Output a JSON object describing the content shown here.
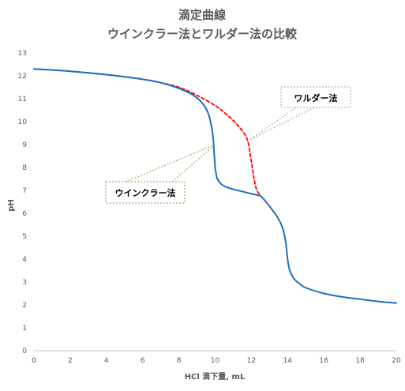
{
  "chart_data": {
    "type": "line",
    "title": "滴定曲線",
    "subtitle": "ウインクラー法とワルダー法の比較",
    "xlabel": "HCl 滴下量, mL",
    "ylabel": "pH",
    "xlim": [
      0,
      20
    ],
    "ylim": [
      0,
      13
    ],
    "x_ticks": [
      0,
      2,
      4,
      6,
      8,
      10,
      12,
      14,
      16,
      18,
      20
    ],
    "y_ticks": [
      0,
      1,
      2,
      3,
      4,
      5,
      6,
      7,
      8,
      9,
      10,
      11,
      12,
      13
    ],
    "grid": false,
    "legend": "none",
    "series": [
      {
        "name": "ウインクラー法",
        "color": "#1f6fbf",
        "style": "solid",
        "x": [
          0,
          2,
          4,
          6,
          7,
          8,
          8.8,
          9.3,
          9.6,
          9.8,
          9.9,
          9.95,
          10.0,
          10.05,
          10.1,
          10.3,
          10.6,
          11,
          11.5,
          12,
          12.5,
          12.8,
          13.2,
          13.5,
          13.75,
          13.9,
          14.0,
          14.05,
          14.1,
          14.2,
          14.4,
          14.7,
          15,
          16,
          17,
          18,
          19,
          20
        ],
        "y": [
          12.3,
          12.2,
          12.05,
          11.85,
          11.7,
          11.45,
          11.15,
          10.8,
          10.4,
          9.8,
          9.2,
          8.6,
          8.0,
          7.75,
          7.55,
          7.3,
          7.15,
          7.05,
          6.95,
          6.85,
          6.75,
          6.5,
          6.1,
          5.75,
          5.3,
          4.7,
          4.0,
          3.75,
          3.55,
          3.35,
          3.1,
          2.9,
          2.75,
          2.5,
          2.35,
          2.25,
          2.15,
          2.08
        ]
      },
      {
        "name": "ワルダー法",
        "color": "#ff0000",
        "style": "dashed",
        "x": [
          0,
          2,
          4,
          6,
          7,
          8,
          9,
          10,
          10.5,
          11,
          11.4,
          11.7,
          11.85,
          11.95,
          12.05,
          12.15,
          12.3,
          12.5
        ],
        "y": [
          12.3,
          12.2,
          12.05,
          11.85,
          11.7,
          11.5,
          11.15,
          10.7,
          10.4,
          10.05,
          9.7,
          9.35,
          9.0,
          8.5,
          8.0,
          7.5,
          7.0,
          6.8
        ]
      }
    ],
    "callouts": [
      {
        "text": "ウインクラー法",
        "series": 0,
        "border_color": "#70ad47",
        "target": [
          10,
          9
        ]
      },
      {
        "text": "ワルダー法",
        "series": 1,
        "border_color": "#a5a5a5",
        "target": [
          11.9,
          9.2
        ]
      }
    ]
  }
}
